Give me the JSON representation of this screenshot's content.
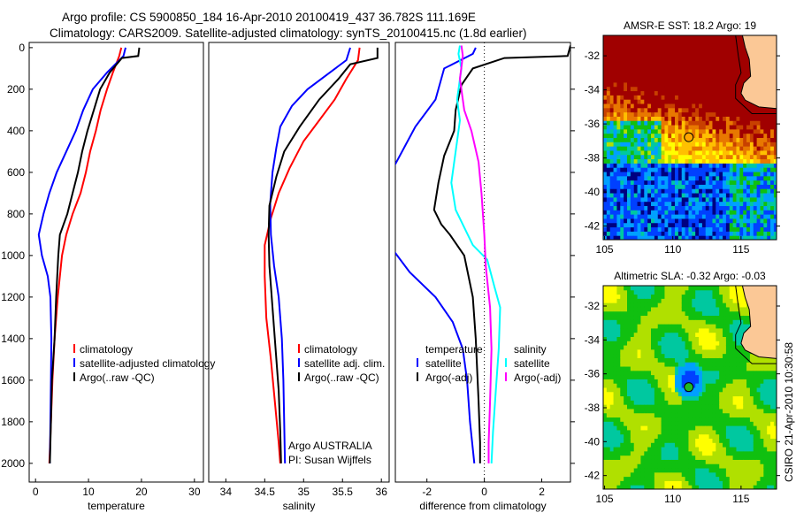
{
  "title_line1": "Argo profile: CS 5900850_184 16-Apr-2010 20100419_437 36.782S 111.169E",
  "title_line2": "Climatology: CARS2009. Satellite-adjusted climatology: synTS_20100415.nc (1.8d earlier)",
  "credit_argo": "Argo AUSTRALIA",
  "credit_pi": "PI: Susan Wijffels",
  "timestamp": "CSIRO 21-Apr-2010 10:30:58",
  "chart_data": [
    {
      "type": "line",
      "id": "temperature",
      "xlabel": "temperature",
      "ylabel": "",
      "xlim": [
        -1.2,
        31.7
      ],
      "ylim": [
        2090,
        -25
      ],
      "xticks": [
        0,
        10,
        20,
        30
      ],
      "yticks": [
        0,
        200,
        400,
        600,
        800,
        1000,
        1200,
        1400,
        1600,
        1800,
        2000
      ],
      "legend": {
        "placement": "bottom-center",
        "entries": [
          "climatology",
          "satellite-adjusted climatology",
          "Argo(..raw -QC)"
        ]
      },
      "series": [
        {
          "name": "climatology",
          "color": "#ff0000",
          "points": [
            [
              16.2,
              0
            ],
            [
              15.8,
              40
            ],
            [
              14.6,
              120
            ],
            [
              13.5,
              200
            ],
            [
              12.3,
              300
            ],
            [
              11.4,
              400
            ],
            [
              10.3,
              500
            ],
            [
              9.5,
              600
            ],
            [
              8.5,
              700
            ],
            [
              7.0,
              800
            ],
            [
              5.8,
              900
            ],
            [
              5.0,
              1000
            ],
            [
              4.2,
              1200
            ],
            [
              3.6,
              1400
            ],
            [
              3.2,
              1600
            ],
            [
              2.9,
              1800
            ],
            [
              2.6,
              2000
            ]
          ]
        },
        {
          "name": "satellite-adjusted climatology",
          "color": "#0000ff",
          "points": [
            [
              17.0,
              0
            ],
            [
              16.6,
              40
            ],
            [
              13.5,
              120
            ],
            [
              10.8,
              200
            ],
            [
              9.0,
              300
            ],
            [
              7.6,
              400
            ],
            [
              5.8,
              500
            ],
            [
              4.0,
              600
            ],
            [
              2.6,
              700
            ],
            [
              1.5,
              800
            ],
            [
              0.6,
              900
            ],
            [
              1.2,
              1000
            ],
            [
              2.3,
              1100
            ],
            [
              2.8,
              1200
            ],
            [
              3.0,
              1400
            ],
            [
              2.9,
              1600
            ],
            [
              2.8,
              1800
            ],
            [
              2.7,
              2000
            ]
          ]
        },
        {
          "name": "Argo(..raw -QC)",
          "color": "#000000",
          "points": [
            [
              19.6,
              0
            ],
            [
              19.4,
              40
            ],
            [
              16.3,
              50
            ],
            [
              14.0,
              120
            ],
            [
              12.2,
              200
            ],
            [
              11.0,
              300
            ],
            [
              9.8,
              400
            ],
            [
              8.8,
              500
            ],
            [
              8.0,
              600
            ],
            [
              7.0,
              700
            ],
            [
              6.0,
              800
            ],
            [
              4.6,
              900
            ],
            [
              4.3,
              1000
            ],
            [
              3.9,
              1200
            ],
            [
              3.6,
              1400
            ],
            [
              3.1,
              1600
            ],
            [
              2.9,
              1800
            ],
            [
              2.7,
              2000
            ]
          ]
        }
      ]
    },
    {
      "type": "line",
      "id": "salinity",
      "xlabel": "salinity",
      "xlim": [
        33.78,
        36.1
      ],
      "ylim": [
        2090,
        -25
      ],
      "xticks": [
        34,
        34.5,
        35,
        35.5,
        36
      ],
      "legend": {
        "placement": "bottom-center",
        "entries": [
          "climatology",
          "satellite adj. clim.",
          "Argo(..raw -QC)"
        ]
      },
      "series": [
        {
          "name": "climatology",
          "color": "#ff0000",
          "points": [
            [
              35.72,
              0
            ],
            [
              35.7,
              60
            ],
            [
              35.55,
              150
            ],
            [
              35.4,
              250
            ],
            [
              35.2,
              350
            ],
            [
              35.0,
              450
            ],
            [
              34.82,
              580
            ],
            [
              34.68,
              700
            ],
            [
              34.58,
              820
            ],
            [
              34.5,
              950
            ],
            [
              34.5,
              1100
            ],
            [
              34.52,
              1300
            ],
            [
              34.58,
              1500
            ],
            [
              34.63,
              1700
            ],
            [
              34.68,
              1900
            ],
            [
              34.7,
              2000
            ]
          ]
        },
        {
          "name": "satellite adj. clim.",
          "color": "#0000ff",
          "points": [
            [
              35.6,
              0
            ],
            [
              35.55,
              60
            ],
            [
              35.3,
              130
            ],
            [
              35.05,
              200
            ],
            [
              34.85,
              280
            ],
            [
              34.7,
              380
            ],
            [
              34.65,
              480
            ],
            [
              34.6,
              600
            ],
            [
              34.57,
              750
            ],
            [
              34.58,
              900
            ],
            [
              34.62,
              1050
            ],
            [
              34.68,
              1200
            ],
            [
              34.72,
              1400
            ],
            [
              34.74,
              1600
            ],
            [
              34.75,
              1800
            ],
            [
              34.76,
              2000
            ]
          ]
        },
        {
          "name": "Argo(..raw -QC)",
          "color": "#000000",
          "points": [
            [
              35.95,
              0
            ],
            [
              35.95,
              50
            ],
            [
              35.6,
              80
            ],
            [
              35.45,
              150
            ],
            [
              35.2,
              250
            ],
            [
              34.95,
              380
            ],
            [
              34.75,
              500
            ],
            [
              34.65,
              620
            ],
            [
              34.56,
              760
            ],
            [
              34.55,
              900
            ],
            [
              34.56,
              1050
            ],
            [
              34.6,
              1250
            ],
            [
              34.64,
              1450
            ],
            [
              34.68,
              1650
            ],
            [
              34.7,
              1850
            ],
            [
              34.71,
              2000
            ]
          ]
        }
      ]
    },
    {
      "type": "line",
      "id": "difference",
      "xlabel": "difference from climatology",
      "xlim": [
        -3.1,
        3.0
      ],
      "ylim": [
        2090,
        -25
      ],
      "xticks": [
        -2,
        0,
        2
      ],
      "zero_line": true,
      "legend": {
        "placement": "bottom",
        "groups": [
          {
            "title": "temperature",
            "entries": [
              "satellite",
              "Argo(-adj)"
            ]
          },
          {
            "title": "salinity",
            "entries": [
              "satellite",
              "Argo(-adj)"
            ]
          }
        ]
      },
      "series": [
        {
          "name": "temperature satellite",
          "color": "#0000ff",
          "points": [
            [
              -0.3,
              0
            ],
            [
              -0.4,
              30
            ],
            [
              -1.4,
              100
            ],
            [
              -1.7,
              250
            ],
            [
              -2.4,
              380
            ],
            [
              -3.1,
              560
            ],
            [
              -3.4,
              620
            ]
          ]
        },
        {
          "name": "temperature satellite (deep)",
          "color": "#0000ff",
          "points": [
            [
              -3.2,
              970
            ],
            [
              -2.6,
              1080
            ],
            [
              -1.7,
              1200
            ],
            [
              -1.1,
              1320
            ],
            [
              -0.75,
              1450
            ],
            [
              -0.6,
              1600
            ],
            [
              -0.5,
              1800
            ],
            [
              -0.35,
              2000
            ]
          ]
        },
        {
          "name": "temperature Argo(-adj)",
          "color": "#000000",
          "points": [
            [
              3.0,
              -10
            ],
            [
              2.9,
              40
            ],
            [
              0.7,
              50
            ],
            [
              -0.4,
              100
            ],
            [
              -0.8,
              180
            ],
            [
              -1.0,
              300
            ],
            [
              -1.05,
              400
            ],
            [
              -1.4,
              520
            ],
            [
              -1.6,
              650
            ],
            [
              -1.75,
              780
            ],
            [
              -1.5,
              850
            ],
            [
              -1.2,
              900
            ],
            [
              -0.7,
              1000
            ],
            [
              -0.4,
              1200
            ],
            [
              -0.3,
              1400
            ],
            [
              -0.2,
              1700
            ],
            [
              -0.15,
              1900
            ],
            [
              -0.15,
              2000
            ]
          ]
        },
        {
          "name": "salinity satellite",
          "color": "#00ffff",
          "points": [
            [
              -0.85,
              -10
            ],
            [
              -0.9,
              30
            ],
            [
              -0.8,
              100
            ],
            [
              -0.95,
              250
            ],
            [
              -0.85,
              350
            ],
            [
              -0.95,
              450
            ],
            [
              -1.15,
              650
            ],
            [
              -1.0,
              780
            ],
            [
              -0.4,
              950
            ],
            [
              0.1,
              1020
            ],
            [
              0.35,
              1150
            ],
            [
              0.55,
              1250
            ],
            [
              0.5,
              1450
            ],
            [
              0.4,
              1650
            ],
            [
              0.3,
              1850
            ],
            [
              0.25,
              2000
            ]
          ]
        },
        {
          "name": "salinity Argo(-adj)",
          "color": "#ff00ff",
          "points": [
            [
              -0.8,
              -10
            ],
            [
              -0.75,
              40
            ],
            [
              -0.85,
              150
            ],
            [
              -0.7,
              300
            ],
            [
              -0.45,
              400
            ],
            [
              -0.2,
              550
            ],
            [
              -0.1,
              700
            ],
            [
              0.0,
              900
            ],
            [
              0.05,
              1050
            ],
            [
              0.2,
              1250
            ],
            [
              0.25,
              1450
            ],
            [
              0.2,
              1700
            ],
            [
              0.15,
              1900
            ],
            [
              0.15,
              2000
            ]
          ]
        }
      ]
    },
    {
      "type": "heatmap",
      "id": "sst",
      "title": "AMSR-E SST: 18.2 Argo: 19",
      "xlim": [
        104.9,
        117.6
      ],
      "ylim": [
        -42.8,
        -30.8
      ],
      "xticks": [
        105,
        110,
        115
      ],
      "yticks": [
        -32,
        -34,
        -36,
        -38,
        -40,
        -42
      ],
      "marker": {
        "lon": 111.169,
        "lat": -36.782,
        "color": "#ffa500"
      }
    },
    {
      "type": "heatmap",
      "id": "sla",
      "title": "Altimetric SLA: -0.32 Argo: -0.03",
      "xlim": [
        104.9,
        117.6
      ],
      "ylim": [
        -42.8,
        -30.8
      ],
      "xticks": [
        105,
        110,
        115
      ],
      "yticks": [
        -32,
        -34,
        -36,
        -38,
        -40,
        -42
      ],
      "marker": {
        "lon": 111.169,
        "lat": -36.782,
        "color": "#22bb22"
      }
    }
  ],
  "colors": {
    "land": "#fbc896"
  }
}
